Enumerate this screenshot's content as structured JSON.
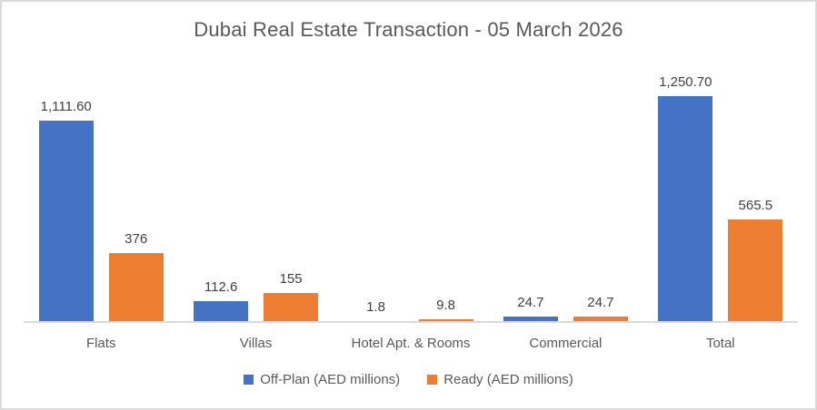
{
  "window": {
    "background": "#ffffff",
    "border_color": "#d9d9d9"
  },
  "chart_data": {
    "type": "bar",
    "title": "Dubai Real Estate Transaction - 05 March 2026",
    "categories": [
      "Flats",
      "Villas",
      "Hotel Apt. & Rooms",
      "Commercial",
      "Total"
    ],
    "series": [
      {
        "name": "Off-Plan (AED millions)",
        "color": "#4472C4",
        "values": [
          1111.6,
          112.6,
          1.8,
          24.7,
          1250.7
        ],
        "labels": [
          "1,111.60",
          "112.6",
          "1.8",
          "24.7",
          "1,250.70"
        ]
      },
      {
        "name": "Ready (AED millions)",
        "color": "#ED7D31",
        "values": [
          376,
          155,
          9.8,
          24.7,
          565.5
        ],
        "labels": [
          "376",
          "155",
          "9.8",
          "24.7",
          "565.5"
        ]
      }
    ],
    "ylim": [
      0,
      1400
    ],
    "grid": false,
    "legend_position": "bottom",
    "axis_line_color": "#d9d9d9",
    "title_color": "#595959",
    "data_label_color": "#404040",
    "axis_text_color": "#595959"
  }
}
